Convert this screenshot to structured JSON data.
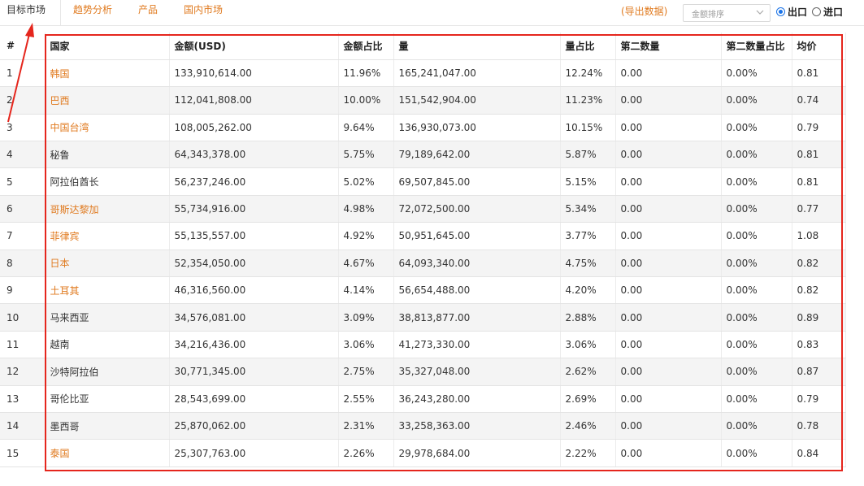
{
  "tabs": [
    {
      "label": "目标市场",
      "active": true
    },
    {
      "label": "趋势分析",
      "active": false
    },
    {
      "label": "产品",
      "active": false
    },
    {
      "label": "国内市场",
      "active": false
    }
  ],
  "toolbar": {
    "export_label": "(导出数据)",
    "sort_selected": "金额排序",
    "radio_export": "出口",
    "radio_import": "进口",
    "selected_radio": "出口"
  },
  "table": {
    "headers": [
      "#",
      "国家",
      "金额(USD)",
      "金额占比",
      "量",
      "量占比",
      "第二数量",
      "第二数量占比",
      "均价"
    ],
    "rows": [
      {
        "n": "1",
        "country": "韩国",
        "link": true,
        "amount": "133,910,614.00",
        "amount_pct": "11.96%",
        "qty": "165,241,047.00",
        "qty_pct": "12.24%",
        "qty2": "0.00",
        "qty2_pct": "0.00%",
        "avg": "0.81"
      },
      {
        "n": "2",
        "country": "巴西",
        "link": true,
        "amount": "112,041,808.00",
        "amount_pct": "10.00%",
        "qty": "151,542,904.00",
        "qty_pct": "11.23%",
        "qty2": "0.00",
        "qty2_pct": "0.00%",
        "avg": "0.74"
      },
      {
        "n": "3",
        "country": "中国台湾",
        "link": true,
        "amount": "108,005,262.00",
        "amount_pct": "9.64%",
        "qty": "136,930,073.00",
        "qty_pct": "10.15%",
        "qty2": "0.00",
        "qty2_pct": "0.00%",
        "avg": "0.79"
      },
      {
        "n": "4",
        "country": "秘鲁",
        "link": false,
        "amount": "64,343,378.00",
        "amount_pct": "5.75%",
        "qty": "79,189,642.00",
        "qty_pct": "5.87%",
        "qty2": "0.00",
        "qty2_pct": "0.00%",
        "avg": "0.81"
      },
      {
        "n": "5",
        "country": "阿拉伯酋长",
        "link": false,
        "amount": "56,237,246.00",
        "amount_pct": "5.02%",
        "qty": "69,507,845.00",
        "qty_pct": "5.15%",
        "qty2": "0.00",
        "qty2_pct": "0.00%",
        "avg": "0.81"
      },
      {
        "n": "6",
        "country": "哥斯达黎加",
        "link": true,
        "amount": "55,734,916.00",
        "amount_pct": "4.98%",
        "qty": "72,072,500.00",
        "qty_pct": "5.34%",
        "qty2": "0.00",
        "qty2_pct": "0.00%",
        "avg": "0.77"
      },
      {
        "n": "7",
        "country": "菲律宾",
        "link": true,
        "amount": "55,135,557.00",
        "amount_pct": "4.92%",
        "qty": "50,951,645.00",
        "qty_pct": "3.77%",
        "qty2": "0.00",
        "qty2_pct": "0.00%",
        "avg": "1.08"
      },
      {
        "n": "8",
        "country": "日本",
        "link": true,
        "amount": "52,354,050.00",
        "amount_pct": "4.67%",
        "qty": "64,093,340.00",
        "qty_pct": "4.75%",
        "qty2": "0.00",
        "qty2_pct": "0.00%",
        "avg": "0.82"
      },
      {
        "n": "9",
        "country": "土耳其",
        "link": true,
        "amount": "46,316,560.00",
        "amount_pct": "4.14%",
        "qty": "56,654,488.00",
        "qty_pct": "4.20%",
        "qty2": "0.00",
        "qty2_pct": "0.00%",
        "avg": "0.82"
      },
      {
        "n": "10",
        "country": "马来西亚",
        "link": false,
        "amount": "34,576,081.00",
        "amount_pct": "3.09%",
        "qty": "38,813,877.00",
        "qty_pct": "2.88%",
        "qty2": "0.00",
        "qty2_pct": "0.00%",
        "avg": "0.89"
      },
      {
        "n": "11",
        "country": "越南",
        "link": false,
        "amount": "34,216,436.00",
        "amount_pct": "3.06%",
        "qty": "41,273,330.00",
        "qty_pct": "3.06%",
        "qty2": "0.00",
        "qty2_pct": "0.00%",
        "avg": "0.83"
      },
      {
        "n": "12",
        "country": "沙特阿拉伯",
        "link": false,
        "amount": "30,771,345.00",
        "amount_pct": "2.75%",
        "qty": "35,327,048.00",
        "qty_pct": "2.62%",
        "qty2": "0.00",
        "qty2_pct": "0.00%",
        "avg": "0.87"
      },
      {
        "n": "13",
        "country": "哥伦比亚",
        "link": false,
        "amount": "28,543,699.00",
        "amount_pct": "2.55%",
        "qty": "36,243,280.00",
        "qty_pct": "2.69%",
        "qty2": "0.00",
        "qty2_pct": "0.00%",
        "avg": "0.79"
      },
      {
        "n": "14",
        "country": "墨西哥",
        "link": false,
        "amount": "25,870,062.00",
        "amount_pct": "2.31%",
        "qty": "33,258,363.00",
        "qty_pct": "2.46%",
        "qty2": "0.00",
        "qty2_pct": "0.00%",
        "avg": "0.78"
      },
      {
        "n": "15",
        "country": "泰国",
        "link": true,
        "amount": "25,307,763.00",
        "amount_pct": "2.26%",
        "qty": "29,978,684.00",
        "qty_pct": "2.22%",
        "qty2": "0.00",
        "qty2_pct": "0.00%",
        "avg": "0.84"
      }
    ]
  },
  "colors": {
    "link": "#e07a1f",
    "highlight_box": "#e5261d",
    "radio_selected": "#1a73e8",
    "row_stripe": "#f4f4f4"
  },
  "icons": {
    "select_chevron": "chevron-down-icon",
    "annotation_arrow": "arrow-icon"
  }
}
